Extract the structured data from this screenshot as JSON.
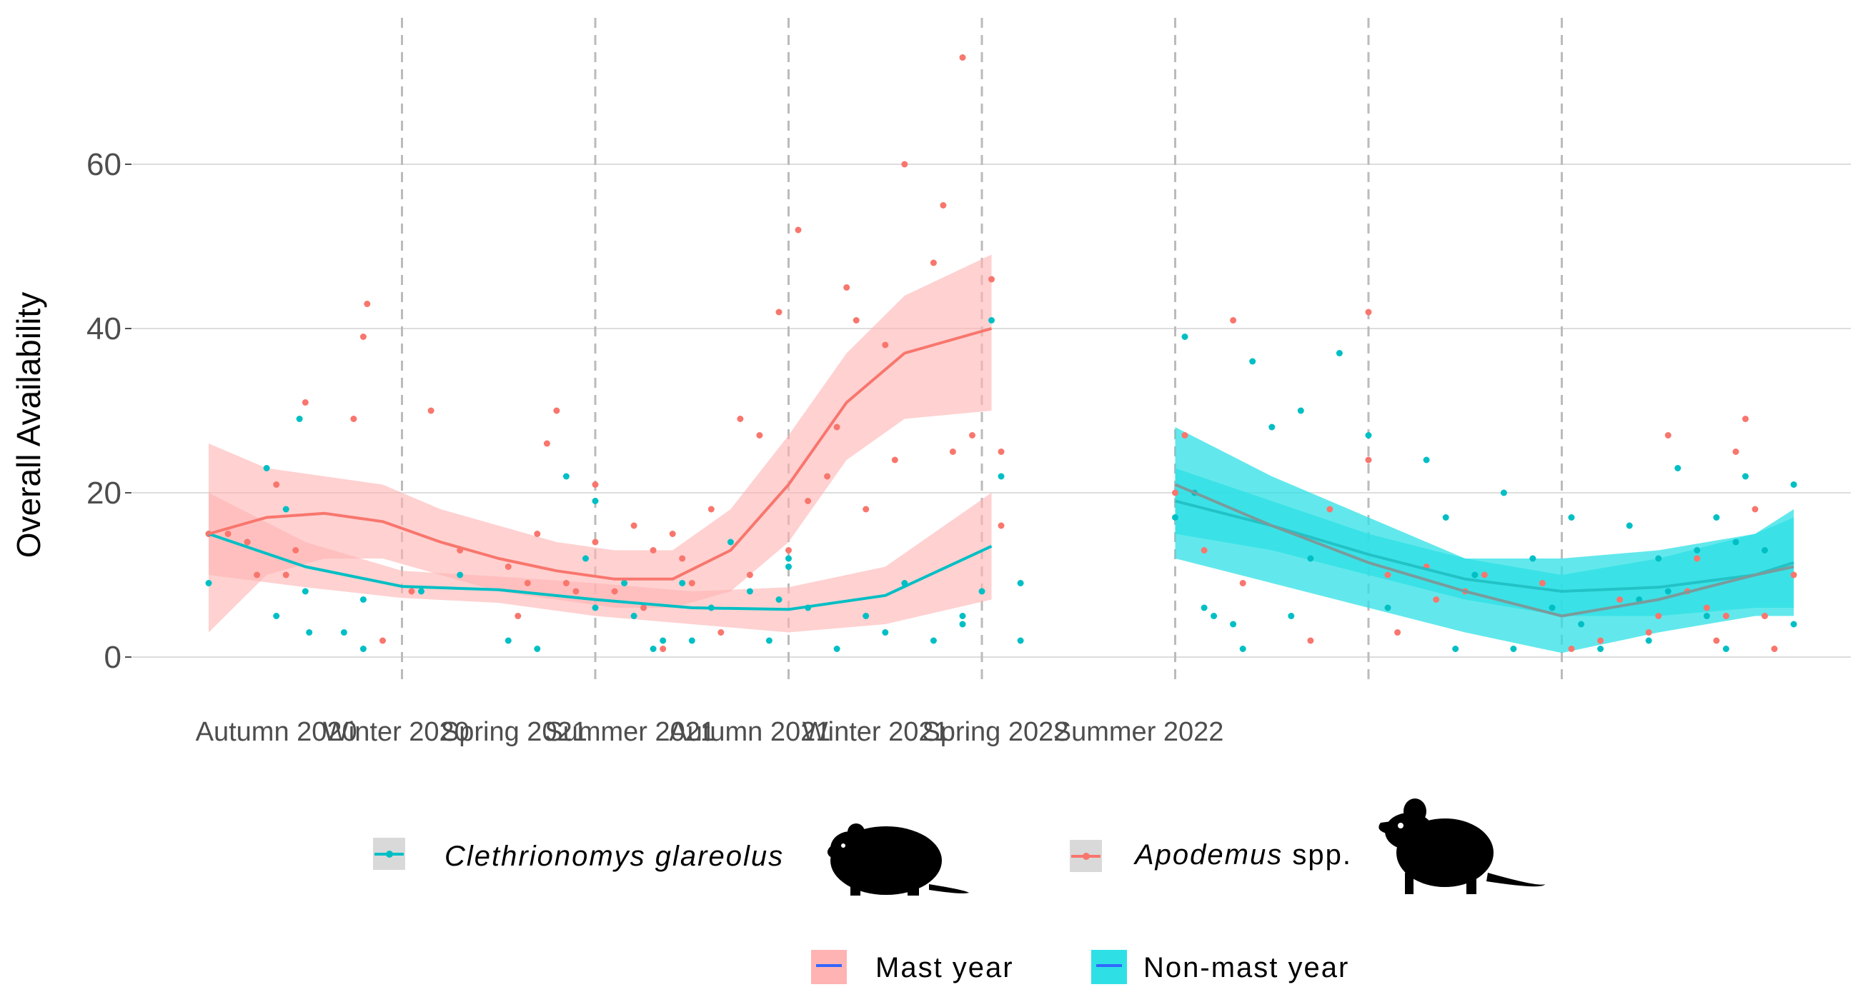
{
  "chart_data": {
    "type": "scatter",
    "ylabel": "Overall Availability",
    "xlabel": "",
    "ylim": [
      0,
      75
    ],
    "yticks": [
      0,
      20,
      40,
      60
    ],
    "grid": "horizontal",
    "seasons": [
      "Autumn 2020",
      "Winter 2020",
      "Spring 2021",
      "Summer 2021",
      "Autumn 2021",
      "Winter 2021",
      "Spring 2022",
      "Summer 2022"
    ],
    "season_dividers": [
      1.0,
      2.0,
      3.0,
      4.0,
      5.0,
      6.0,
      7.0
    ],
    "colors": {
      "clethrionomys": "#00bfc4",
      "apodemus": "#f8766d",
      "mast_band": "#ffb3b3",
      "nonmast_band": "#2ee0e6",
      "grid": "#dddddd",
      "divider": "#bbbbbb"
    },
    "series": [
      {
        "name": "Clethrionomys glareolus",
        "color": "#00bfc4",
        "points": [
          [
            0.0,
            9
          ],
          [
            0.0,
            15
          ],
          [
            0.2,
            14
          ],
          [
            0.3,
            23
          ],
          [
            0.35,
            5
          ],
          [
            0.4,
            18
          ],
          [
            0.47,
            29
          ],
          [
            0.5,
            8
          ],
          [
            0.52,
            3
          ],
          [
            0.7,
            3
          ],
          [
            0.8,
            7
          ],
          [
            0.8,
            1
          ],
          [
            1.1,
            8
          ],
          [
            1.3,
            10
          ],
          [
            1.55,
            2
          ],
          [
            1.7,
            1
          ],
          [
            1.85,
            22
          ],
          [
            1.95,
            12
          ],
          [
            2.0,
            19
          ],
          [
            2.0,
            6
          ],
          [
            2.15,
            9
          ],
          [
            2.2,
            5
          ],
          [
            2.3,
            1
          ],
          [
            2.35,
            2
          ],
          [
            2.45,
            9
          ],
          [
            2.5,
            2
          ],
          [
            2.6,
            6
          ],
          [
            2.7,
            14
          ],
          [
            2.8,
            8
          ],
          [
            2.9,
            2
          ],
          [
            2.95,
            7
          ],
          [
            3.0,
            12
          ],
          [
            3.0,
            11
          ],
          [
            3.1,
            6
          ],
          [
            3.25,
            1
          ],
          [
            3.4,
            5
          ],
          [
            3.5,
            3
          ],
          [
            3.6,
            9
          ],
          [
            3.75,
            2
          ],
          [
            3.9,
            5
          ],
          [
            3.9,
            4
          ],
          [
            4.0,
            8
          ],
          [
            4.05,
            41
          ],
          [
            4.1,
            22
          ],
          [
            4.2,
            9
          ],
          [
            4.2,
            2
          ],
          [
            5.0,
            17
          ],
          [
            5.05,
            39
          ],
          [
            5.1,
            20
          ],
          [
            5.15,
            6
          ],
          [
            5.2,
            5
          ],
          [
            5.3,
            4
          ],
          [
            5.35,
            1
          ],
          [
            5.4,
            36
          ],
          [
            5.5,
            28
          ],
          [
            5.6,
            5
          ],
          [
            5.65,
            30
          ],
          [
            5.7,
            12
          ],
          [
            5.85,
            37
          ],
          [
            6.0,
            27
          ],
          [
            6.1,
            6
          ],
          [
            6.3,
            24
          ],
          [
            6.4,
            17
          ],
          [
            6.45,
            1
          ],
          [
            6.55,
            10
          ],
          [
            6.7,
            20
          ],
          [
            6.75,
            1
          ],
          [
            6.85,
            12
          ],
          [
            6.95,
            6
          ],
          [
            7.05,
            17
          ],
          [
            7.1,
            4
          ],
          [
            7.2,
            1
          ],
          [
            7.35,
            16
          ],
          [
            7.4,
            7
          ],
          [
            7.45,
            2
          ],
          [
            7.5,
            12
          ],
          [
            7.55,
            8
          ],
          [
            7.6,
            23
          ],
          [
            7.7,
            13
          ],
          [
            7.75,
            5
          ],
          [
            7.8,
            17
          ],
          [
            7.85,
            1
          ],
          [
            7.9,
            14
          ],
          [
            7.95,
            22
          ],
          [
            8.05,
            13
          ],
          [
            8.2,
            21
          ],
          [
            8.2,
            4
          ]
        ]
      },
      {
        "name": "Apodemus spp.",
        "color": "#f8766d",
        "points": [
          [
            0.0,
            15
          ],
          [
            0.1,
            15
          ],
          [
            0.2,
            14
          ],
          [
            0.25,
            10
          ],
          [
            0.35,
            21
          ],
          [
            0.4,
            10
          ],
          [
            0.45,
            13
          ],
          [
            0.5,
            31
          ],
          [
            0.75,
            29
          ],
          [
            0.8,
            39
          ],
          [
            0.82,
            43
          ],
          [
            0.9,
            2
          ],
          [
            1.05,
            8
          ],
          [
            1.15,
            30
          ],
          [
            1.3,
            13
          ],
          [
            1.55,
            11
          ],
          [
            1.6,
            5
          ],
          [
            1.65,
            9
          ],
          [
            1.7,
            15
          ],
          [
            1.75,
            26
          ],
          [
            1.8,
            30
          ],
          [
            1.85,
            9
          ],
          [
            1.9,
            8
          ],
          [
            2.0,
            14
          ],
          [
            2.0,
            21
          ],
          [
            2.1,
            8
          ],
          [
            2.2,
            16
          ],
          [
            2.25,
            6
          ],
          [
            2.3,
            13
          ],
          [
            2.35,
            1
          ],
          [
            2.4,
            15
          ],
          [
            2.45,
            12
          ],
          [
            2.5,
            9
          ],
          [
            2.6,
            18
          ],
          [
            2.65,
            3
          ],
          [
            2.75,
            29
          ],
          [
            2.8,
            10
          ],
          [
            2.85,
            27
          ],
          [
            2.95,
            42
          ],
          [
            3.0,
            13
          ],
          [
            3.05,
            52
          ],
          [
            3.1,
            19
          ],
          [
            3.2,
            22
          ],
          [
            3.25,
            28
          ],
          [
            3.3,
            45
          ],
          [
            3.35,
            41
          ],
          [
            3.4,
            18
          ],
          [
            3.5,
            38
          ],
          [
            3.55,
            24
          ],
          [
            3.6,
            60
          ],
          [
            3.75,
            48
          ],
          [
            3.8,
            55
          ],
          [
            3.85,
            25
          ],
          [
            3.9,
            73
          ],
          [
            3.95,
            27
          ],
          [
            4.05,
            46
          ],
          [
            4.1,
            25
          ],
          [
            4.1,
            16
          ],
          [
            5.0,
            20
          ],
          [
            5.05,
            27
          ],
          [
            5.15,
            13
          ],
          [
            5.3,
            41
          ],
          [
            5.35,
            9
          ],
          [
            5.7,
            2
          ],
          [
            5.8,
            18
          ],
          [
            6.0,
            42
          ],
          [
            6.0,
            24
          ],
          [
            6.1,
            10
          ],
          [
            6.15,
            3
          ],
          [
            6.3,
            11
          ],
          [
            6.35,
            7
          ],
          [
            6.5,
            8
          ],
          [
            6.6,
            10
          ],
          [
            6.9,
            9
          ],
          [
            7.05,
            1
          ],
          [
            7.2,
            2
          ],
          [
            7.3,
            7
          ],
          [
            7.45,
            3
          ],
          [
            7.5,
            5
          ],
          [
            7.55,
            27
          ],
          [
            7.65,
            8
          ],
          [
            7.7,
            12
          ],
          [
            7.75,
            6
          ],
          [
            7.8,
            2
          ],
          [
            7.85,
            5
          ],
          [
            7.9,
            25
          ],
          [
            7.95,
            29
          ],
          [
            8.0,
            18
          ],
          [
            8.05,
            5
          ],
          [
            8.1,
            1
          ],
          [
            8.2,
            10
          ]
        ]
      }
    ],
    "smooths": [
      {
        "label": "Mast year",
        "species": "Clethrionomys glareolus",
        "x": [
          0.0,
          0.5,
          1.0,
          1.5,
          2.0,
          2.5,
          3.0,
          3.5,
          4.05
        ],
        "y": [
          15,
          11,
          8.6,
          8.2,
          7,
          6,
          5.8,
          7.5,
          13.5
        ],
        "lower": [
          10,
          8.5,
          7.2,
          6.6,
          5,
          4,
          3,
          4,
          7
        ],
        "upper": [
          20,
          14,
          10.5,
          9.8,
          9,
          8,
          8.5,
          11,
          20
        ]
      },
      {
        "label": "Mast year",
        "species": "Apodemus spp.",
        "x": [
          0.0,
          0.3,
          0.6,
          0.9,
          1.2,
          1.5,
          1.8,
          2.1,
          2.4,
          2.7,
          3.0,
          3.3,
          3.6,
          4.05
        ],
        "y": [
          15,
          17,
          17.5,
          16.5,
          14,
          12,
          10.5,
          9.5,
          9.5,
          13,
          21,
          31,
          37,
          40
        ],
        "lower": [
          3,
          10,
          12,
          12,
          10,
          8,
          7,
          6,
          6,
          8,
          14,
          24,
          29,
          30
        ],
        "upper": [
          26,
          23,
          22,
          21,
          18,
          16,
          14,
          13,
          13,
          18,
          27,
          37,
          44,
          49
        ]
      },
      {
        "label": "Non-mast year",
        "species": "Clethrionomys glareolus",
        "x": [
          5.0,
          5.5,
          6.0,
          6.5,
          7.0,
          7.5,
          8.0,
          8.2
        ],
        "y": [
          19,
          16,
          12.5,
          9.5,
          8,
          8.5,
          10,
          11.5
        ],
        "lower": [
          15,
          13,
          10,
          7,
          5,
          5,
          6,
          6
        ],
        "upper": [
          23,
          19,
          15,
          12,
          12,
          13,
          15,
          18
        ]
      },
      {
        "label": "Non-mast year",
        "species": "Apodemus spp.",
        "x": [
          5.0,
          5.5,
          6.0,
          6.5,
          7.0,
          7.5,
          8.0,
          8.2
        ],
        "y": [
          21,
          16,
          11.5,
          8,
          5,
          7,
          10,
          11
        ],
        "lower": [
          12,
          9,
          6,
          3,
          0.5,
          3,
          5,
          5
        ],
        "upper": [
          28,
          22,
          17,
          12,
          10,
          12,
          15,
          17
        ]
      }
    ]
  },
  "legend": {
    "species": [
      {
        "name": "Clethrionomys glareolus",
        "color": "#00bfc4",
        "icon": "bank-vole-silhouette-icon"
      },
      {
        "name_italic": "Apodemus",
        "name_suffix": " spp.",
        "color": "#f8766d",
        "icon": "wood-mouse-silhouette-icon"
      }
    ],
    "mast": [
      {
        "label": "Mast year",
        "fill": "#ffb3b3",
        "line": "#3366ff"
      },
      {
        "label": "Non-mast year",
        "fill": "#2ee0e6",
        "line": "#3366ff"
      }
    ]
  }
}
